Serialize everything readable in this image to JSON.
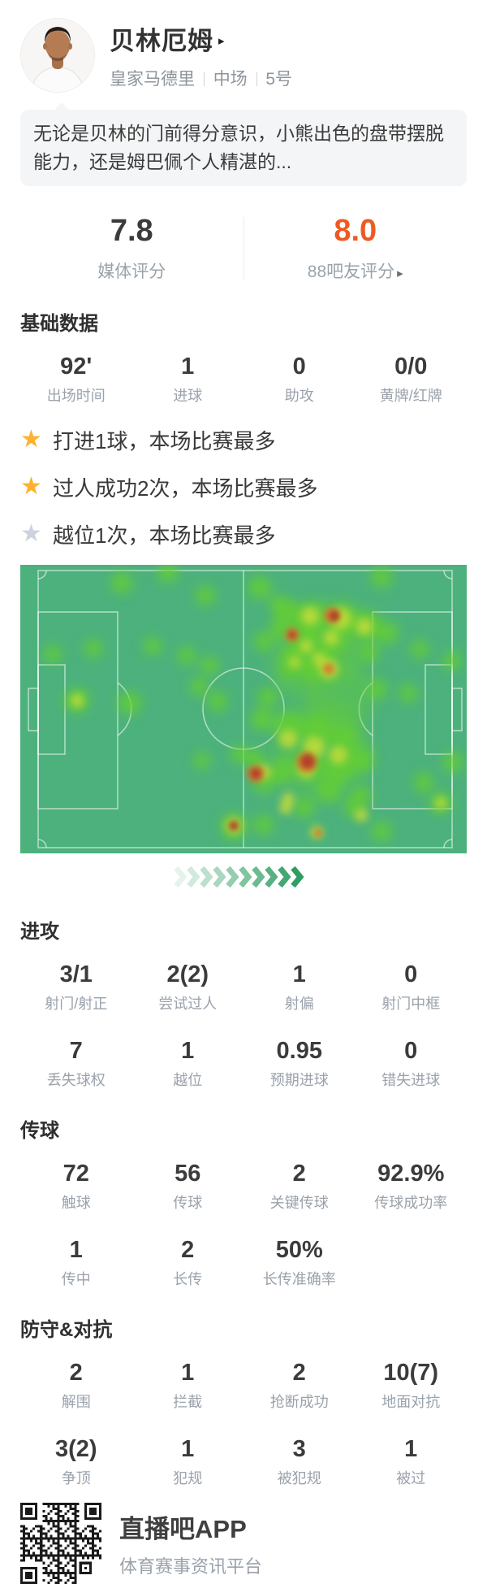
{
  "header": {
    "player_name": "贝林厄姆",
    "expand_arrow": "▸",
    "team": "皇家马德里",
    "position": "中场",
    "shirt_number": "5号",
    "separator": "|"
  },
  "summary": {
    "text": "无论是贝林的门前得分意识，小熊出色的盘带摆脱能力，还是姆巴佩个人精湛的..."
  },
  "ratings": {
    "media": {
      "value": "7.8",
      "label": "媒体评分"
    },
    "fans": {
      "value": "8.0",
      "label": "88吧友评分",
      "arrow": "▸",
      "color": "#ed5a24"
    }
  },
  "basic": {
    "title": "基础数据",
    "stats": [
      {
        "v": "92'",
        "l": "出场时间"
      },
      {
        "v": "1",
        "l": "进球"
      },
      {
        "v": "0",
        "l": "助攻"
      },
      {
        "v": "0/0",
        "l": "黄牌/红牌"
      }
    ]
  },
  "highlights": {
    "star_gold": "#fdb331",
    "star_gray": "#ccd3de",
    "items": [
      {
        "star": "gold",
        "text": "打进1球，本场比赛最多"
      },
      {
        "star": "gold",
        "text": "过人成功2次，本场比赛最多"
      },
      {
        "star": "gray",
        "text": "越位1次，本场比赛最多"
      }
    ]
  },
  "heatmap": {
    "pitch_color": "#4cb17c",
    "line_color": "rgba(255,255,255,0.55)",
    "levels": {
      "g": "#64d02f",
      "y": "#c6dc3a",
      "o": "#d07c2e",
      "r": "#b03b2c"
    },
    "washes": [
      [
        380,
        95,
        50
      ],
      [
        372,
        225,
        58
      ],
      [
        395,
        160,
        42
      ],
      [
        345,
        128,
        36
      ]
    ],
    "blobs": [
      [
        125,
        22,
        13,
        "g"
      ],
      [
        182,
        10,
        12,
        "g"
      ],
      [
        228,
        38,
        12,
        "g"
      ],
      [
        295,
        28,
        14,
        "g"
      ],
      [
        318,
        48,
        11,
        "g"
      ],
      [
        445,
        15,
        13,
        "g"
      ],
      [
        40,
        110,
        11,
        "g"
      ],
      [
        90,
        103,
        11,
        "g"
      ],
      [
        163,
        100,
        11,
        "g"
      ],
      [
        205,
        112,
        11,
        "g"
      ],
      [
        233,
        124,
        11,
        "g"
      ],
      [
        220,
        150,
        11,
        "g"
      ],
      [
        243,
        168,
        12,
        "g"
      ],
      [
        70,
        167,
        15,
        "g"
      ],
      [
        135,
        170,
        14,
        "g"
      ],
      [
        305,
        163,
        12,
        "g"
      ],
      [
        224,
        241,
        10,
        "g"
      ],
      [
        270,
        233,
        11,
        "g"
      ],
      [
        290,
        240,
        13,
        "g"
      ],
      [
        430,
        108,
        12,
        "g"
      ],
      [
        492,
        104,
        11,
        "g"
      ],
      [
        532,
        118,
        11,
        "g"
      ],
      [
        440,
        153,
        12,
        "g"
      ],
      [
        478,
        158,
        11,
        "g"
      ],
      [
        533,
        243,
        12,
        "g"
      ],
      [
        497,
        268,
        12,
        "g"
      ],
      [
        518,
        293,
        13,
        "g"
      ],
      [
        445,
        328,
        12,
        "g"
      ],
      [
        420,
        283,
        12,
        "g"
      ],
      [
        330,
        60,
        18,
        "g"
      ],
      [
        360,
        66,
        20,
        "g"
      ],
      [
        398,
        68,
        20,
        "g"
      ],
      [
        428,
        74,
        18,
        "g"
      ],
      [
        452,
        84,
        14,
        "g"
      ],
      [
        388,
        94,
        16,
        "g"
      ],
      [
        352,
        92,
        16,
        "g"
      ],
      [
        320,
        80,
        13,
        "g"
      ],
      [
        300,
        95,
        12,
        "g"
      ],
      [
        335,
        112,
        14,
        "g"
      ],
      [
        372,
        112,
        14,
        "g"
      ],
      [
        358,
        128,
        13,
        "g"
      ],
      [
        332,
        128,
        12,
        "g"
      ],
      [
        298,
        190,
        14,
        "g"
      ],
      [
        330,
        198,
        18,
        "g"
      ],
      [
        365,
        204,
        20,
        "g"
      ],
      [
        398,
        214,
        18,
        "g"
      ],
      [
        420,
        240,
        16,
        "g"
      ],
      [
        392,
        250,
        18,
        "g"
      ],
      [
        356,
        246,
        18,
        "g"
      ],
      [
        322,
        254,
        16,
        "g"
      ],
      [
        300,
        268,
        13,
        "g"
      ],
      [
        380,
        278,
        15,
        "g"
      ],
      [
        412,
        298,
        13,
        "g"
      ],
      [
        350,
        298,
        13,
        "g"
      ],
      [
        263,
        322,
        16,
        "g"
      ],
      [
        300,
        320,
        12,
        "g"
      ],
      [
        357,
        63,
        11,
        "y"
      ],
      [
        395,
        66,
        13,
        "y"
      ],
      [
        424,
        76,
        10,
        "y"
      ],
      [
        383,
        90,
        9,
        "y"
      ],
      [
        352,
        100,
        8,
        "y"
      ],
      [
        368,
        116,
        8,
        "y"
      ],
      [
        338,
        120,
        7,
        "y"
      ],
      [
        380,
        128,
        12,
        "y"
      ],
      [
        70,
        167,
        8,
        "y"
      ],
      [
        518,
        293,
        7,
        "y"
      ],
      [
        330,
        214,
        11,
        "y"
      ],
      [
        362,
        224,
        13,
        "y"
      ],
      [
        392,
        234,
        11,
        "y"
      ],
      [
        352,
        252,
        10,
        "y"
      ],
      [
        300,
        255,
        9,
        "y"
      ],
      [
        330,
        288,
        8,
        "y"
      ],
      [
        420,
        308,
        8,
        "y"
      ],
      [
        263,
        321,
        10,
        "y"
      ],
      [
        327,
        299,
        8,
        "y"
      ],
      [
        365,
        329,
        8,
        "y"
      ],
      [
        384,
        62,
        10,
        "o"
      ],
      [
        335,
        86,
        9,
        "o"
      ],
      [
        380,
        128,
        7,
        "o"
      ],
      [
        290,
        257,
        11,
        "o"
      ],
      [
        353,
        243,
        13,
        "o"
      ],
      [
        367,
        330,
        5,
        "o"
      ],
      [
        387,
        63,
        7,
        "r"
      ],
      [
        290,
        257,
        7,
        "r"
      ],
      [
        354,
        242,
        9,
        "r"
      ],
      [
        263,
        321,
        6,
        "r"
      ],
      [
        335,
        86,
        5,
        "r"
      ]
    ]
  },
  "divider": {
    "chevron_count": 10,
    "chevron_color": "#2f9e63"
  },
  "attack": {
    "title": "进攻",
    "rows": [
      [
        {
          "v": "3/1",
          "l": "射门/射正"
        },
        {
          "v": "2(2)",
          "l": "尝试过人"
        },
        {
          "v": "1",
          "l": "射偏"
        },
        {
          "v": "0",
          "l": "射门中框"
        }
      ],
      [
        {
          "v": "7",
          "l": "丢失球权"
        },
        {
          "v": "1",
          "l": "越位"
        },
        {
          "v": "0.95",
          "l": "预期进球"
        },
        {
          "v": "0",
          "l": "错失进球"
        }
      ]
    ]
  },
  "passing": {
    "title": "传球",
    "rows": [
      [
        {
          "v": "72",
          "l": "触球"
        },
        {
          "v": "56",
          "l": "传球"
        },
        {
          "v": "2",
          "l": "关键传球"
        },
        {
          "v": "92.9%",
          "l": "传球成功率"
        }
      ],
      [
        {
          "v": "1",
          "l": "传中"
        },
        {
          "v": "2",
          "l": "长传"
        },
        {
          "v": "50%",
          "l": "长传准确率"
        },
        {
          "v": "",
          "l": ""
        }
      ]
    ]
  },
  "defense": {
    "title": "防守&对抗",
    "rows": [
      [
        {
          "v": "2",
          "l": "解围"
        },
        {
          "v": "1",
          "l": "拦截"
        },
        {
          "v": "2",
          "l": "抢断成功"
        },
        {
          "v": "10(7)",
          "l": "地面对抗"
        }
      ],
      [
        {
          "v": "3(2)",
          "l": "争顶"
        },
        {
          "v": "1",
          "l": "犯规"
        },
        {
          "v": "3",
          "l": "被犯规"
        },
        {
          "v": "1",
          "l": "被过"
        }
      ]
    ]
  },
  "footer": {
    "app_name": "直播吧APP",
    "tagline": "体育赛事资讯平台"
  }
}
